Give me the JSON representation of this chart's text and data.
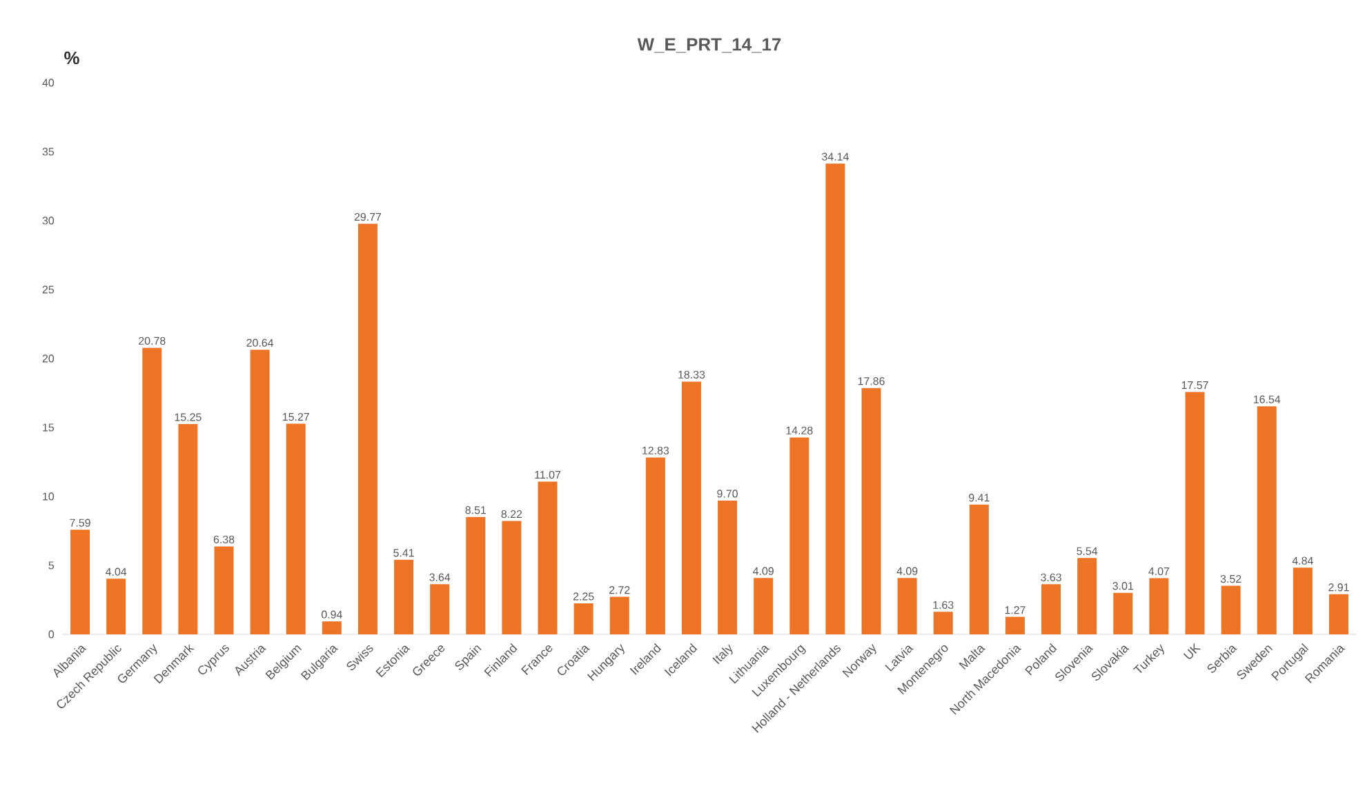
{
  "chart_data": {
    "type": "bar",
    "title": "W_E_PRT_14_17",
    "ylabel": "%",
    "categories": [
      "Albania",
      "Czech Republic",
      "Germany",
      "Denmark",
      "Cyprus",
      "Austria",
      "Belgium",
      "Bulgaria",
      "Swiss",
      "Estonia",
      "Greece",
      "Spain",
      "Finland",
      "France",
      "Croatia",
      "Hungary",
      "Ireland",
      "Iceland",
      "Italy",
      "Lithuania",
      "Luxembourg",
      "Holland - Netherlands",
      "Norway",
      "Latvia",
      "Montenegro",
      "Malta",
      "North Macedonia",
      "Poland",
      "Slovenia",
      "Slovakia",
      "Turkey",
      "UK",
      "Serbia",
      "Sweden",
      "Portugal",
      "Romania"
    ],
    "values": [
      7.59,
      4.04,
      20.78,
      15.25,
      6.38,
      20.64,
      15.27,
      0.94,
      29.77,
      5.41,
      3.64,
      8.51,
      8.22,
      11.07,
      2.25,
      2.72,
      12.83,
      18.33,
      9.7,
      4.09,
      14.28,
      34.14,
      17.86,
      4.09,
      1.63,
      9.41,
      1.27,
      3.63,
      5.54,
      3.01,
      4.07,
      17.57,
      3.52,
      16.54,
      4.84,
      2.91
    ],
    "value_labels": [
      "7.59",
      "4.04",
      "20.78",
      "15.25",
      "6.38",
      "20.64",
      "15.27",
      "0.94",
      "29.77",
      "5.41",
      "3.64",
      "8.51",
      "8.22",
      "11.07",
      "2.25",
      "2.72",
      "12.83",
      "18.33",
      "9.70",
      "4.09",
      "14.28",
      "34.14",
      "17.86",
      "4.09",
      "1.63",
      "9.41",
      "1.27",
      "3.63",
      "5.54",
      "3.01",
      "4.07",
      "17.57",
      "3.52",
      "16.54",
      "4.84",
      "2.91"
    ],
    "color": "#ec7424",
    "ylim": [
      0,
      40
    ],
    "yticks": [
      0,
      5,
      10,
      15,
      20,
      25,
      30,
      35,
      40
    ]
  }
}
